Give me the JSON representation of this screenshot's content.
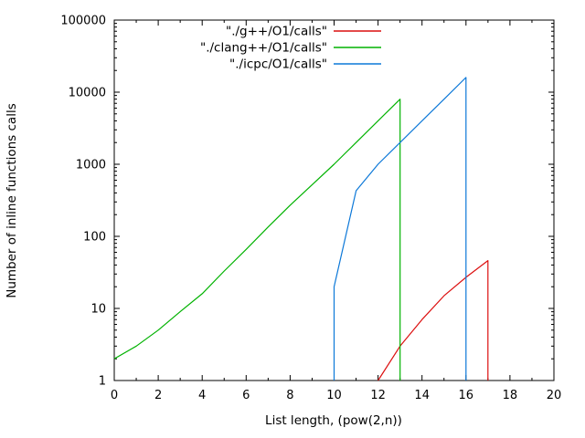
{
  "window": {
    "background": "#ffffff"
  },
  "chart_data": {
    "type": "line",
    "title": "",
    "xlabel": "List length, (pow(2,n))",
    "ylabel": "Number of inline functions calls",
    "x_scale": "linear",
    "y_scale": "log10",
    "xlim": [
      0,
      20
    ],
    "ylim": [
      1,
      100000
    ],
    "x_major_ticks": [
      0,
      2,
      4,
      6,
      8,
      10,
      12,
      14,
      16,
      18,
      20
    ],
    "x_minor_ticks": [
      1,
      3,
      5,
      7,
      9,
      11,
      13,
      15,
      17,
      19
    ],
    "y_major_ticks": [
      1,
      10,
      100,
      1000,
      10000,
      100000
    ],
    "y_major_tick_labels": [
      "1",
      "10",
      "100",
      "1000",
      "10000",
      "100000"
    ],
    "y_minor_ticks_per_decade": [
      2,
      3,
      4,
      5,
      6,
      7,
      8,
      9
    ],
    "grid": false,
    "legend_position": "top-center-inside",
    "tick_style": "inward-mirrored",
    "series": [
      {
        "name": "\"./g++/O1/calls\"",
        "color": "#dc0f0f",
        "points": [
          [
            12,
            1
          ],
          [
            13,
            3
          ],
          [
            14,
            7
          ],
          [
            15,
            15
          ],
          [
            16,
            27
          ],
          [
            17,
            46
          ],
          [
            17,
            1
          ]
        ]
      },
      {
        "name": "\"./clang++/O1/calls\"",
        "color": "#00b200",
        "points": [
          [
            0,
            2
          ],
          [
            1,
            3
          ],
          [
            2,
            5
          ],
          [
            3,
            9
          ],
          [
            4,
            16
          ],
          [
            5,
            33
          ],
          [
            6,
            66
          ],
          [
            7,
            135
          ],
          [
            8,
            270
          ],
          [
            9,
            520
          ],
          [
            10,
            1000
          ],
          [
            11,
            2000
          ],
          [
            12,
            4000
          ],
          [
            13,
            8000
          ],
          [
            13,
            1
          ]
        ]
      },
      {
        "name": "\"./icpc/O1/calls\"",
        "color": "#0c78d8",
        "points": [
          [
            10,
            1
          ],
          [
            10,
            20
          ],
          [
            11,
            430
          ],
          [
            12,
            1000
          ],
          [
            13,
            2000
          ],
          [
            14,
            4000
          ],
          [
            15,
            8000
          ],
          [
            16,
            16000
          ],
          [
            16,
            1
          ]
        ]
      }
    ]
  }
}
